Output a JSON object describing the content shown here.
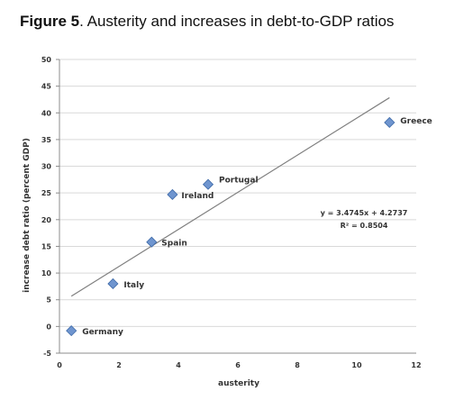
{
  "figure": {
    "label": "Figure 5",
    "caption": ". Austerity and increases in debt-to-GDP ratios"
  },
  "chart_data": {
    "type": "scatter",
    "xlabel": "austerity",
    "ylabel": "increase debt ratio (percent GDP)",
    "xlim": [
      0,
      12
    ],
    "ylim": [
      -5,
      50
    ],
    "xticks": [
      0,
      2,
      4,
      6,
      8,
      10,
      12
    ],
    "yticks": [
      -5,
      0,
      5,
      10,
      15,
      20,
      25,
      30,
      35,
      40,
      45,
      50
    ],
    "grid": true,
    "marker_color": "#6f95cf",
    "marker_edge_color": "#3e6aa8",
    "trendline_color": "#7f7f7f",
    "points": [
      {
        "label": "Germany",
        "x": 0.4,
        "y": -0.8
      },
      {
        "label": "Italy",
        "x": 1.8,
        "y": 8.0
      },
      {
        "label": "Spain",
        "x": 3.1,
        "y": 15.8
      },
      {
        "label": "Ireland",
        "x": 3.8,
        "y": 24.7
      },
      {
        "label": "Portugal",
        "x": 5.0,
        "y": 26.6
      },
      {
        "label": "Greece",
        "x": 11.1,
        "y": 38.2
      }
    ],
    "trendline": {
      "slope": 3.4745,
      "intercept": 4.2737,
      "x_start": 0.4,
      "x_end": 11.1,
      "equation": "y = 3.4745x + 4.2737",
      "r_squared": "R² = 0.8504"
    }
  }
}
